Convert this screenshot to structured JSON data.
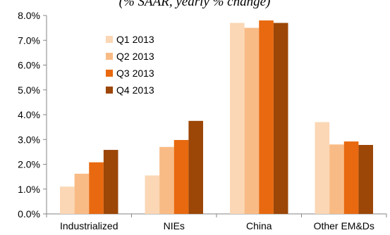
{
  "chart_data": {
    "type": "bar",
    "title": "(% SAAR, yearly % change)",
    "categories": [
      "Industrialized",
      "NIEs",
      "China",
      "Other EM&Ds"
    ],
    "series": [
      {
        "name": "Q1 2013",
        "color": "#FBD7B5",
        "values": [
          1.1,
          1.55,
          7.7,
          3.7
        ]
      },
      {
        "name": "Q2 2013",
        "color": "#F9BB85",
        "values": [
          1.62,
          2.7,
          7.5,
          2.8
        ]
      },
      {
        "name": "Q3 2013",
        "color": "#E8690F",
        "values": [
          2.08,
          2.98,
          7.8,
          2.92
        ]
      },
      {
        "name": "Q4 2013",
        "color": "#9C4607",
        "values": [
          2.58,
          3.75,
          7.7,
          2.78
        ]
      }
    ],
    "ylim": [
      0,
      8
    ],
    "ytick_step": 1,
    "ytick_format": "percent_1dp",
    "xlabel": "",
    "ylabel": "",
    "grid": false,
    "legend_position": "top-left"
  }
}
